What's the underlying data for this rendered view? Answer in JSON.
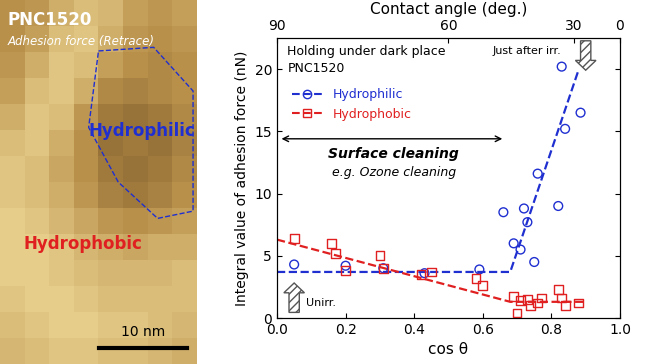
{
  "image": {
    "title": "PNC1520",
    "subtitle": "Adhesion force (Retrace)",
    "region_labels": [
      {
        "text": "Hydrophilic",
        "color": "#1f2fd0"
      },
      {
        "text": "Hydrophobic",
        "color": "#e02020"
      }
    ],
    "scale_bar": "10 nm",
    "range": [
      0,
      1
    ],
    "cells": [
      [
        0.5,
        0.55,
        0.7,
        0.8,
        0.75,
        0.6,
        0.55,
        0.6
      ],
      [
        0.5,
        0.6,
        0.8,
        0.85,
        0.7,
        0.55,
        0.5,
        0.55
      ],
      [
        0.55,
        0.7,
        0.85,
        0.8,
        0.6,
        0.5,
        0.45,
        0.5
      ],
      [
        0.6,
        0.8,
        0.85,
        0.7,
        0.45,
        0.4,
        0.45,
        0.5
      ],
      [
        0.7,
        0.85,
        0.8,
        0.55,
        0.35,
        0.3,
        0.35,
        0.45
      ],
      [
        0.8,
        0.85,
        0.7,
        0.5,
        0.3,
        0.35,
        0.3,
        0.4
      ],
      [
        0.85,
        0.8,
        0.65,
        0.5,
        0.35,
        0.3,
        0.35,
        0.45
      ],
      [
        0.85,
        0.8,
        0.7,
        0.55,
        0.4,
        0.35,
        0.4,
        0.5
      ],
      [
        0.9,
        0.85,
        0.75,
        0.65,
        0.55,
        0.5,
        0.55,
        0.6
      ],
      [
        0.9,
        0.9,
        0.85,
        0.75,
        0.7,
        0.65,
        0.7,
        0.7
      ],
      [
        0.9,
        0.9,
        0.85,
        0.8,
        0.75,
        0.75,
        0.75,
        0.8
      ],
      [
        0.85,
        0.9,
        0.9,
        0.85,
        0.8,
        0.8,
        0.8,
        0.8
      ],
      [
        0.8,
        0.85,
        0.9,
        0.9,
        0.85,
        0.85,
        0.8,
        0.75
      ],
      [
        0.75,
        0.8,
        0.85,
        0.85,
        0.8,
        0.8,
        0.75,
        0.7
      ]
    ]
  },
  "chart_data": {
    "type": "scatter",
    "xlabel": "cos θ",
    "ylabel": "Integral value of adhesion force (nN)",
    "x2label": "Contact angle (deg.)",
    "xlim": [
      0.0,
      1.0
    ],
    "xticks": [
      0.0,
      0.2,
      0.4,
      0.6,
      0.8,
      1.0
    ],
    "ylim": [
      0,
      22.5
    ],
    "yticks": [
      0,
      5,
      10,
      15,
      20
    ],
    "x2ticks": [
      {
        "value": 0.0,
        "label": "90"
      },
      {
        "value": 0.5,
        "label": "60"
      },
      {
        "value": 0.866,
        "label": "30"
      },
      {
        "value": 1.0,
        "label": "0"
      }
    ],
    "legend": "upper left",
    "grid": false,
    "annotations": {
      "note": [
        "Holding under dark place",
        "PNC1520"
      ],
      "bracket_title": "Surface cleaning",
      "bracket_subtitle": "e.g. Ozone cleaning",
      "after": "Just after irr.",
      "before": "Unirr."
    },
    "series": [
      {
        "name": "Hydrophilic",
        "color": "#1f2fd0",
        "marker": "o",
        "line_style": "dashed",
        "x": [
          0.05,
          0.2,
          0.31,
          0.43,
          0.59,
          0.66,
          0.69,
          0.71,
          0.72,
          0.73,
          0.75,
          0.76,
          0.82,
          0.83,
          0.84,
          0.885
        ],
        "values": [
          4.3,
          4.2,
          4.0,
          3.6,
          3.9,
          8.5,
          6.0,
          5.5,
          8.8,
          7.7,
          4.5,
          11.6,
          9.0,
          20.2,
          15.2,
          16.5
        ],
        "fit_x": [
          0.0,
          0.68,
          0.88
        ],
        "fit_values": [
          3.7,
          3.7,
          20.0
        ]
      },
      {
        "name": "Hydrophobic",
        "color": "#e02020",
        "marker": "s",
        "line_style": "dashed",
        "x": [
          0.05,
          0.16,
          0.17,
          0.2,
          0.3,
          0.31,
          0.42,
          0.45,
          0.58,
          0.6,
          0.69,
          0.7,
          0.71,
          0.73,
          0.74,
          0.76,
          0.77,
          0.82,
          0.83,
          0.84,
          0.88
        ],
        "values": [
          6.4,
          6.0,
          5.2,
          3.8,
          5.0,
          4.0,
          3.5,
          3.7,
          3.2,
          2.6,
          1.7,
          0.4,
          1.4,
          1.5,
          1.0,
          1.2,
          1.6,
          2.3,
          1.6,
          1.0,
          1.2
        ],
        "fit_x": [
          0.0,
          0.68,
          0.9
        ],
        "fit_values": [
          6.3,
          1.3,
          1.3
        ]
      }
    ]
  }
}
